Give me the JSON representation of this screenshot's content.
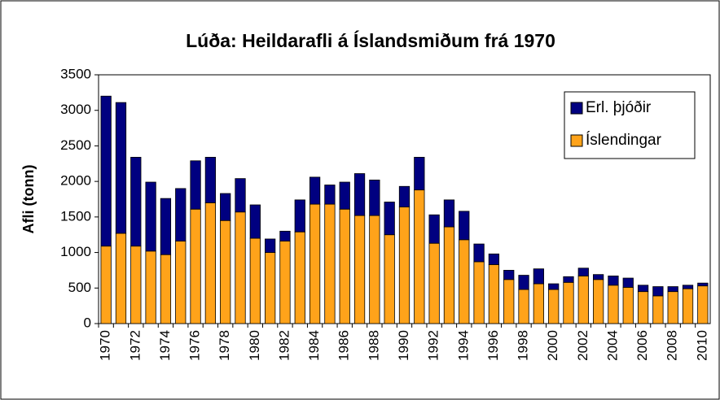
{
  "chart_data": {
    "type": "stacked_bar",
    "title": "Lúða: Heildarafli á Íslandsmiðum frá 1970",
    "y_label": "Afli (tonn)",
    "categories": [
      "1970",
      null,
      "1972",
      null,
      "1974",
      null,
      "1976",
      null,
      "1978",
      null,
      "1980",
      null,
      "1982",
      null,
      "1984",
      null,
      "1986",
      null,
      "1988",
      null,
      "1990",
      null,
      "1992",
      null,
      "1994",
      null,
      "1996",
      null,
      "1998",
      null,
      "2000",
      null,
      "2002",
      null,
      "2004",
      null,
      "2006",
      null,
      "2008",
      null,
      "2010"
    ],
    "series": [
      {
        "name": "Erl. þjóðir",
        "color": "#000080",
        "values": [
          2110,
          1840,
          1250,
          970,
          790,
          740,
          680,
          640,
          380,
          470,
          470,
          190,
          140,
          450,
          380,
          270,
          380,
          590,
          500,
          460,
          290,
          460,
          400,
          380,
          400,
          250,
          150,
          130,
          200,
          210,
          80,
          80,
          110,
          70,
          130,
          130,
          90,
          130,
          70,
          50,
          40
        ]
      },
      {
        "name": "Íslendingar",
        "color": "#ffa31a",
        "values": [
          1090,
          1270,
          1090,
          1020,
          970,
          1160,
          1610,
          1700,
          1450,
          1570,
          1200,
          1000,
          1160,
          1290,
          1680,
          1680,
          1610,
          1520,
          1520,
          1250,
          1640,
          1880,
          1130,
          1360,
          1180,
          870,
          830,
          620,
          480,
          560,
          480,
          580,
          670,
          620,
          540,
          510,
          450,
          390,
          450,
          490,
          530
        ]
      }
    ],
    "ylim": [
      0,
      3500
    ],
    "yticks": [
      0,
      500,
      1000,
      1500,
      2000,
      2500,
      3000,
      3500
    ],
    "grid": false,
    "legend": "upper right"
  }
}
